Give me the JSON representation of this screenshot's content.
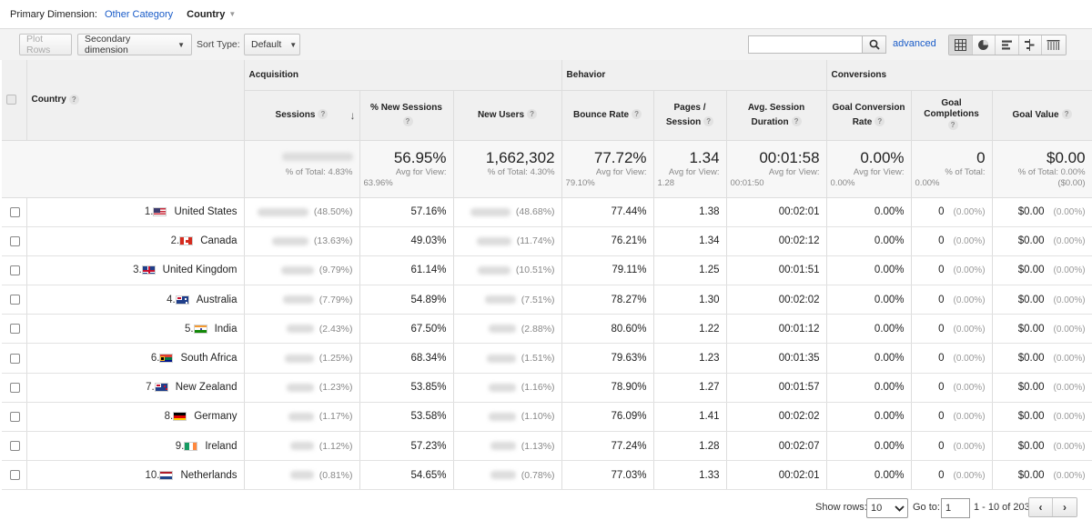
{
  "primary_dimension": {
    "label": "Primary Dimension:",
    "other_category": "Other Category",
    "selected": "Country"
  },
  "toolbar": {
    "plot_rows": "Plot Rows",
    "secondary_dimension": "Secondary dimension",
    "sort_type_label": "Sort Type:",
    "sort_type_value": "Default",
    "search_value": "",
    "advanced": "advanced"
  },
  "groups": {
    "acquisition": "Acquisition",
    "behavior": "Behavior",
    "conversions": "Conversions"
  },
  "columns": {
    "country": "Country",
    "sessions": "Sessions",
    "new_sessions": "% New Sessions",
    "new_users": "New Users",
    "bounce_rate": "Bounce Rate",
    "pages_session_1": "Pages /",
    "pages_session_2": "Session",
    "avg_duration_1": "Avg. Session",
    "avg_duration_2": "Duration",
    "goal_conv_1": "Goal Conversion",
    "goal_conv_2": "Rate",
    "goal_comp_1": "Goal",
    "goal_comp_2": "Completions",
    "goal_value": "Goal Value"
  },
  "totals": {
    "sessions_pct": "% of Total: 4.83%",
    "new_sessions": "56.95%",
    "new_sessions_avg1": "Avg for View:",
    "new_sessions_avg2": "63.96%",
    "new_users": "1,662,302",
    "new_users_pct": "% of Total: 4.30%",
    "bounce_rate": "77.72%",
    "bounce_avg1": "Avg for View:",
    "bounce_avg2": "79.10%",
    "pages": "1.34",
    "pages_avg1": "Avg for View:",
    "pages_avg2": "1.28",
    "duration": "00:01:58",
    "duration_avg1": "Avg for View:",
    "duration_avg2": "00:01:50",
    "goal_conv": "0.00%",
    "goal_conv_avg1": "Avg for View:",
    "goal_conv_avg2": "0.00%",
    "goal_comp": "0",
    "goal_comp_pct1": "% of Total:",
    "goal_comp_pct2": "0.00%",
    "goal_value": "$0.00",
    "goal_value_pct1": "% of Total: 0.00%",
    "goal_value_pct2": "($0.00)"
  },
  "rows": [
    {
      "num": "1.",
      "country": "United States",
      "flag": "us",
      "sessions_pct": "(48.50%)",
      "new_sessions": "57.16%",
      "new_users_pct": "(48.68%)",
      "bounce": "77.44%",
      "pages": "1.38",
      "duration": "00:02:01",
      "goal_conv": "0.00%",
      "goal_comp": "0",
      "goal_comp_pct": "(0.00%)",
      "goal_value": "$0.00",
      "goal_value_pct": "(0.00%)"
    },
    {
      "num": "2.",
      "country": "Canada",
      "flag": "ca",
      "sessions_pct": "(13.63%)",
      "new_sessions": "49.03%",
      "new_users_pct": "(11.74%)",
      "bounce": "76.21%",
      "pages": "1.34",
      "duration": "00:02:12",
      "goal_conv": "0.00%",
      "goal_comp": "0",
      "goal_comp_pct": "(0.00%)",
      "goal_value": "$0.00",
      "goal_value_pct": "(0.00%)"
    },
    {
      "num": "3.",
      "country": "United Kingdom",
      "flag": "gb",
      "sessions_pct": "(9.79%)",
      "new_sessions": "61.14%",
      "new_users_pct": "(10.51%)",
      "bounce": "79.11%",
      "pages": "1.25",
      "duration": "00:01:51",
      "goal_conv": "0.00%",
      "goal_comp": "0",
      "goal_comp_pct": "(0.00%)",
      "goal_value": "$0.00",
      "goal_value_pct": "(0.00%)"
    },
    {
      "num": "4.",
      "country": "Australia",
      "flag": "au",
      "sessions_pct": "(7.79%)",
      "new_sessions": "54.89%",
      "new_users_pct": "(7.51%)",
      "bounce": "78.27%",
      "pages": "1.30",
      "duration": "00:02:02",
      "goal_conv": "0.00%",
      "goal_comp": "0",
      "goal_comp_pct": "(0.00%)",
      "goal_value": "$0.00",
      "goal_value_pct": "(0.00%)"
    },
    {
      "num": "5.",
      "country": "India",
      "flag": "in",
      "sessions_pct": "(2.43%)",
      "new_sessions": "67.50%",
      "new_users_pct": "(2.88%)",
      "bounce": "80.60%",
      "pages": "1.22",
      "duration": "00:01:12",
      "goal_conv": "0.00%",
      "goal_comp": "0",
      "goal_comp_pct": "(0.00%)",
      "goal_value": "$0.00",
      "goal_value_pct": "(0.00%)"
    },
    {
      "num": "6.",
      "country": "South Africa",
      "flag": "za",
      "sessions_pct": "(1.25%)",
      "new_sessions": "68.34%",
      "new_users_pct": "(1.51%)",
      "bounce": "79.63%",
      "pages": "1.23",
      "duration": "00:01:35",
      "goal_conv": "0.00%",
      "goal_comp": "0",
      "goal_comp_pct": "(0.00%)",
      "goal_value": "$0.00",
      "goal_value_pct": "(0.00%)"
    },
    {
      "num": "7.",
      "country": "New Zealand",
      "flag": "nz",
      "sessions_pct": "(1.23%)",
      "new_sessions": "53.85%",
      "new_users_pct": "(1.16%)",
      "bounce": "78.90%",
      "pages": "1.27",
      "duration": "00:01:57",
      "goal_conv": "0.00%",
      "goal_comp": "0",
      "goal_comp_pct": "(0.00%)",
      "goal_value": "$0.00",
      "goal_value_pct": "(0.00%)"
    },
    {
      "num": "8.",
      "country": "Germany",
      "flag": "de",
      "sessions_pct": "(1.17%)",
      "new_sessions": "53.58%",
      "new_users_pct": "(1.10%)",
      "bounce": "76.09%",
      "pages": "1.41",
      "duration": "00:02:02",
      "goal_conv": "0.00%",
      "goal_comp": "0",
      "goal_comp_pct": "(0.00%)",
      "goal_value": "$0.00",
      "goal_value_pct": "(0.00%)"
    },
    {
      "num": "9.",
      "country": "Ireland",
      "flag": "ie",
      "sessions_pct": "(1.12%)",
      "new_sessions": "57.23%",
      "new_users_pct": "(1.13%)",
      "bounce": "77.24%",
      "pages": "1.28",
      "duration": "00:02:07",
      "goal_conv": "0.00%",
      "goal_comp": "0",
      "goal_comp_pct": "(0.00%)",
      "goal_value": "$0.00",
      "goal_value_pct": "(0.00%)"
    },
    {
      "num": "10.",
      "country": "Netherlands",
      "flag": "nl",
      "sessions_pct": "(0.81%)",
      "new_sessions": "54.65%",
      "new_users_pct": "(0.78%)",
      "bounce": "77.03%",
      "pages": "1.33",
      "duration": "00:02:01",
      "goal_conv": "0.00%",
      "goal_comp": "0",
      "goal_comp_pct": "(0.00%)",
      "goal_value": "$0.00",
      "goal_value_pct": "(0.00%)"
    }
  ],
  "footer": {
    "show_rows_label": "Show rows:",
    "show_rows_value": "10",
    "goto_label": "Go to:",
    "goto_value": "1",
    "range": "1 - 10 of 203"
  }
}
